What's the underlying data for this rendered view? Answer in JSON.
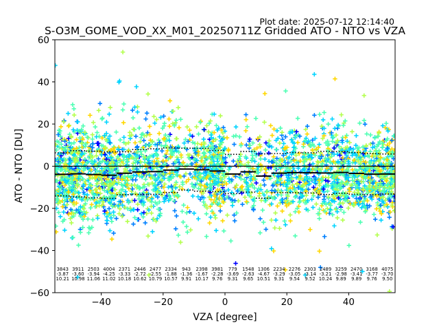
{
  "chart_data": {
    "type": "scatter",
    "plot_date": "Plot date: 2025-07-12 12:14:40",
    "title": "S-O3M_GOME_VOD_XX_M01_20250711Z Gridded ATO - NTO vs VZA",
    "xlabel": "VZA [degree]",
    "ylabel": "ATO - NTO [DU]",
    "xlim": [
      -55,
      55
    ],
    "ylim": [
      -60,
      60
    ],
    "xticks": [
      -40,
      -20,
      0,
      20,
      40
    ],
    "yticks": [
      -60,
      -40,
      -20,
      0,
      20,
      40,
      60
    ],
    "grid": false,
    "marker": "+",
    "marker_colors": [
      "#0000ff",
      "#0080ff",
      "#00d4ff",
      "#4dffb3",
      "#b3ff4d",
      "#ffd700"
    ],
    "bin_width": 5,
    "bins": [
      {
        "x_start": -55,
        "x_end": -50,
        "count": "3843",
        "mean": "-3.87",
        "std": "10.21"
      },
      {
        "x_start": -50,
        "x_end": -45,
        "count": "3911",
        "mean": "-3.60",
        "std": "10.98"
      },
      {
        "x_start": -45,
        "x_end": -40,
        "count": "2503",
        "mean": "-3.94",
        "std": "11.06"
      },
      {
        "x_start": -40,
        "x_end": -35,
        "count": "4004",
        "mean": "-4.25",
        "std": "11.02"
      },
      {
        "x_start": -35,
        "x_end": -30,
        "count": "2371",
        "mean": "-3.33",
        "std": "10.18"
      },
      {
        "x_start": -30,
        "x_end": -25,
        "count": "2446",
        "mean": "-2.72",
        "std": "10.62"
      },
      {
        "x_start": -25,
        "x_end": -20,
        "count": "2477",
        "mean": "-2.55",
        "std": "10.79"
      },
      {
        "x_start": -20,
        "x_end": -15,
        "count": "2334",
        "mean": "-1.88",
        "std": "10.57"
      },
      {
        "x_start": -15,
        "x_end": -10,
        "count": "943",
        "mean": "-1.36",
        "std": "9.91"
      },
      {
        "x_start": -10,
        "x_end": -5,
        "count": "2398",
        "mean": "-1.67",
        "std": "10.17"
      },
      {
        "x_start": -5,
        "x_end": 0,
        "count": "3981",
        "mean": "-2.28",
        "std": "9.76"
      },
      {
        "x_start": 0,
        "x_end": 5,
        "count": "779",
        "mean": "-3.69",
        "std": "9.31"
      },
      {
        "x_start": 5,
        "x_end": 10,
        "count": "1548",
        "mean": "-2.63",
        "std": "9.65"
      },
      {
        "x_start": 10,
        "x_end": 15,
        "count": "1306",
        "mean": "-4.67",
        "std": "10.51"
      },
      {
        "x_start": 15,
        "x_end": 20,
        "count": "2234",
        "mean": "-3.29",
        "std": "9.31"
      },
      {
        "x_start": 20,
        "x_end": 25,
        "count": "2276",
        "mean": "-3.05",
        "std": "9.54"
      },
      {
        "x_start": 25,
        "x_end": 30,
        "count": "2303",
        "mean": "-3.14",
        "std": "9.52"
      },
      {
        "x_start": 30,
        "x_end": 35,
        "count": "2489",
        "mean": "-3.21",
        "std": "10.24"
      },
      {
        "x_start": 35,
        "x_end": 40,
        "count": "3259",
        "mean": "-2.98",
        "std": "9.89"
      },
      {
        "x_start": 40,
        "x_end": 45,
        "count": "2470",
        "mean": "-3.41",
        "std": "9.89"
      },
      {
        "x_start": 45,
        "x_end": 50,
        "count": "3168",
        "mean": "-3.77",
        "std": "9.76"
      },
      {
        "x_start": 50,
        "x_end": 55,
        "count": "4075",
        "mean": "-3.70",
        "std": "9.50"
      }
    ]
  }
}
